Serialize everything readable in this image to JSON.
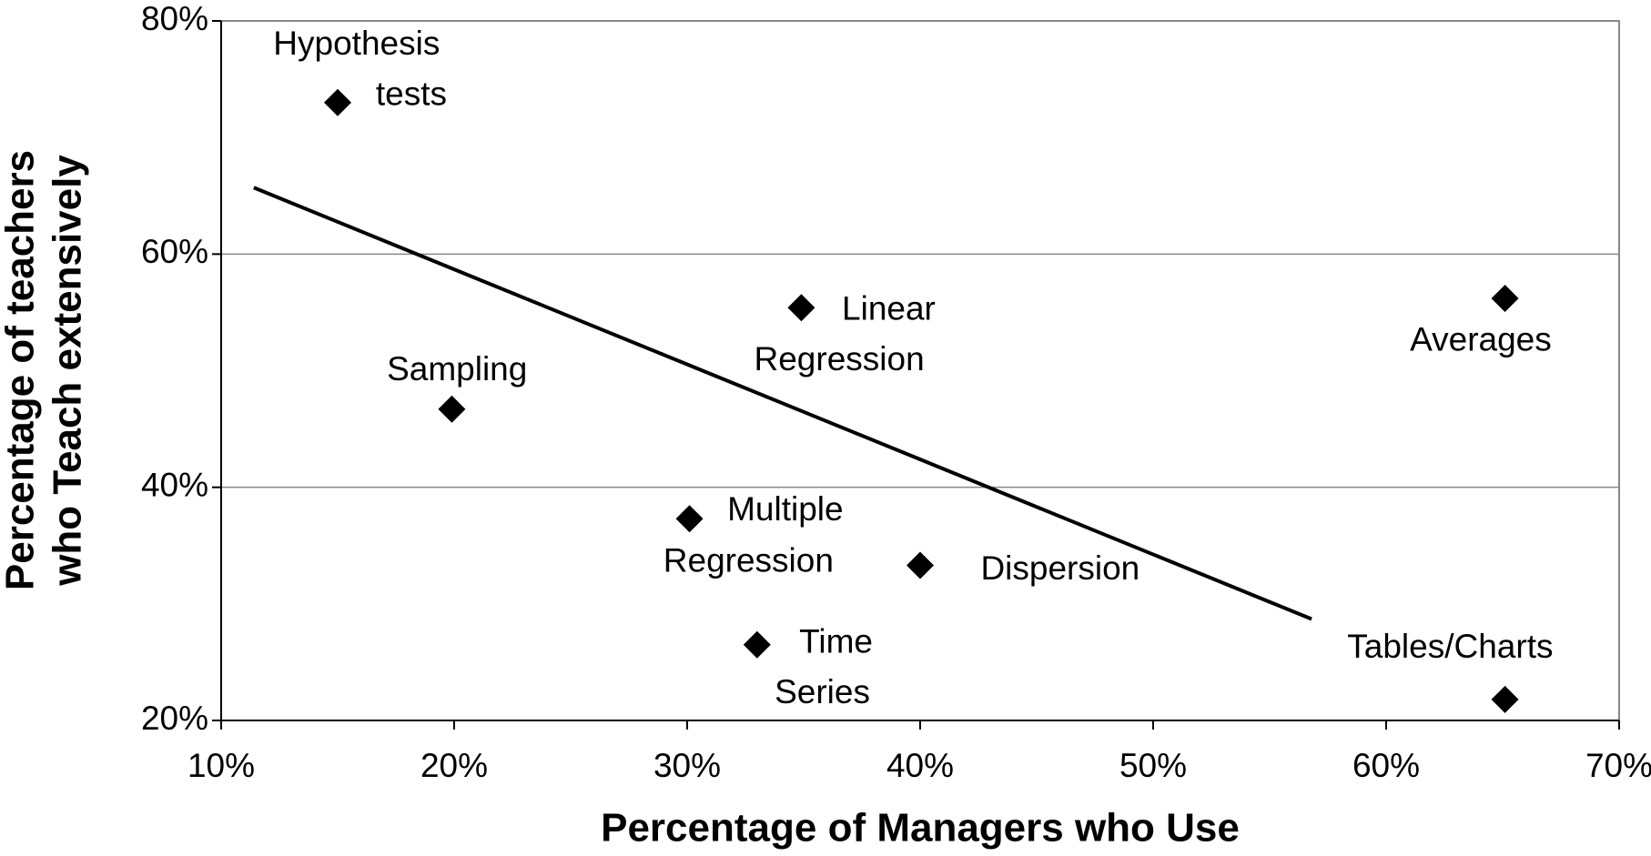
{
  "chart_data": {
    "type": "scatter",
    "x_label": "Percentage of Managers who Use",
    "y_label": [
      "Percentage of teachers",
      "who Teach extensively"
    ],
    "labels": [
      [
        "Hypothesis",
        "tests"
      ],
      [
        "Sampling"
      ],
      [
        "Linear",
        "Regression"
      ],
      [
        "Averages"
      ],
      [
        "Multiple",
        "Regression"
      ],
      [
        "Dispersion"
      ],
      [
        "Time",
        "Series"
      ],
      [
        "Tables/Charts"
      ]
    ],
    "x": [
      15.0,
      19.9,
      34.9,
      65.1,
      30.1,
      40.0,
      33.0,
      65.1
    ],
    "y": [
      73.0,
      46.7,
      55.4,
      56.2,
      37.3,
      33.3,
      26.5,
      21.8
    ],
    "color": "#000000",
    "trendline": {
      "x": [
        11.4,
        56.8
      ],
      "y": [
        65.7,
        28.7
      ]
    },
    "xlim": [
      10,
      70
    ],
    "ylim": [
      20,
      80
    ],
    "xticks": [
      {
        "value": 10,
        "label": "10%"
      },
      {
        "value": 20,
        "label": "20%"
      },
      {
        "value": 30,
        "label": "30%"
      },
      {
        "value": 40,
        "label": "40%"
      },
      {
        "value": 50,
        "label": "50%"
      },
      {
        "value": 60,
        "label": "60%"
      },
      {
        "value": 70,
        "label": "70%"
      }
    ],
    "yticks": [
      {
        "value": 20,
        "label": "20%"
      },
      {
        "value": 40,
        "label": "40%"
      },
      {
        "value": 60,
        "label": "60%"
      },
      {
        "value": 80,
        "label": "80%"
      }
    ],
    "grid": true
  }
}
